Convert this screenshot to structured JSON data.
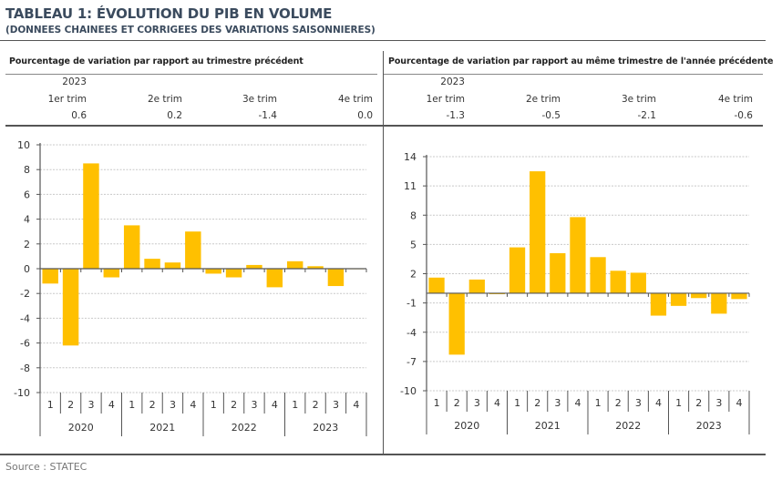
{
  "header": {
    "title": "TABLEAU 1: ÉVOLUTION DU PIB EN VOLUME",
    "subtitle": "(DONNEES CHAINEES ET CORRIGEES DES VARIATIONS SAISONNIERES)"
  },
  "panels": [
    {
      "heading": "Pourcentage de variation par rapport au trimestre précédent",
      "table": {
        "year": "2023",
        "columns": [
          "1er trim",
          "2e trim",
          "3e trim",
          "4e trim"
        ],
        "values": [
          "0.6",
          "0.2",
          "-1.4",
          "0.0"
        ]
      }
    },
    {
      "heading": "Pourcentage de variation par rapport au même trimestre de l'année précédente",
      "table": {
        "year": "2023",
        "columns": [
          "1er trim",
          "2e trim",
          "3e trim",
          "4e trim"
        ],
        "values": [
          "-1.3",
          "-0.5",
          "-2.1",
          "-0.6"
        ]
      }
    }
  ],
  "colors": {
    "bar": "#FFC000",
    "title": "#3b4b5e"
  },
  "source": "Source : STATEC",
  "chart_data": [
    {
      "type": "bar",
      "title": "Pourcentage de variation par rapport au trimestre précédent",
      "xlabel": "",
      "ylabel": "",
      "categories": [
        "1",
        "2",
        "3",
        "4",
        "1",
        "2",
        "3",
        "4",
        "1",
        "2",
        "3",
        "4",
        "1",
        "2",
        "3",
        "4"
      ],
      "groups": [
        "2020",
        "2021",
        "2022",
        "2023"
      ],
      "values": [
        -1.2,
        -6.2,
        8.5,
        -0.7,
        3.5,
        0.8,
        0.5,
        3.0,
        -0.4,
        -0.7,
        0.3,
        -1.5,
        0.6,
        0.2,
        -1.4,
        0.0
      ],
      "ylim": [
        -10,
        10
      ],
      "yticks": [
        10,
        8,
        6,
        4,
        2,
        0,
        -2,
        -4,
        -6,
        -8,
        -10
      ],
      "grid": true,
      "legend": "none"
    },
    {
      "type": "bar",
      "title": "Pourcentage de variation par rapport au même trimestre de l'année précédente",
      "xlabel": "",
      "ylabel": "",
      "categories": [
        "1",
        "2",
        "3",
        "4",
        "1",
        "2",
        "3",
        "4",
        "1",
        "2",
        "3",
        "4",
        "1",
        "2",
        "3",
        "4"
      ],
      "groups": [
        "2020",
        "2021",
        "2022",
        "2023"
      ],
      "values": [
        1.6,
        -6.3,
        1.4,
        -0.1,
        4.7,
        12.5,
        4.1,
        7.8,
        3.7,
        2.3,
        2.1,
        -2.3,
        -1.3,
        -0.5,
        -2.1,
        -0.6
      ],
      "ylim": [
        -10,
        14
      ],
      "yticks": [
        14,
        11,
        8,
        5,
        2,
        -1,
        -4,
        -7,
        -10
      ],
      "grid": true,
      "legend": "none"
    }
  ]
}
